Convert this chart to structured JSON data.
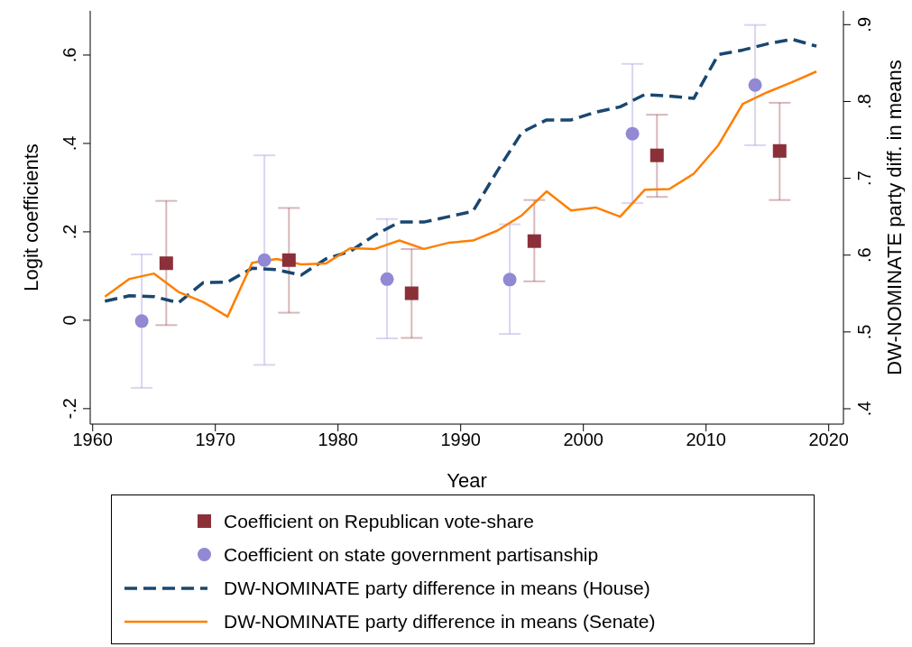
{
  "chart_data": {
    "type": "scatter",
    "xlabel": "Year",
    "ylabel": "Logit coefficients",
    "y2label": "DW-NOMINATE party diff. in means",
    "xlim": [
      1959.8,
      2021.2
    ],
    "xticks": [
      1960,
      1970,
      1980,
      1990,
      2000,
      2010,
      2020
    ],
    "ylim": [
      -0.235,
      0.7
    ],
    "yticks": [
      {
        "value": -0.2,
        "label": "-.2"
      },
      0,
      {
        "value": 0.2,
        "label": ".2"
      },
      {
        "value": 0.4,
        "label": ".4"
      },
      {
        "value": 0.6,
        "label": ".6"
      }
    ],
    "y2lim": [
      0.38,
      0.918
    ],
    "y2ticks": [
      {
        "value": 0.4,
        "label": ".4"
      },
      {
        "value": 0.5,
        "label": ".5"
      },
      {
        "value": 0.6,
        "label": ".6"
      },
      {
        "value": 0.7,
        "label": ".7"
      },
      {
        "value": 0.8,
        "label": ".8"
      },
      {
        "value": 0.9,
        "label": ".9"
      }
    ],
    "grid": false,
    "legend": "bottom",
    "series": [
      {
        "name": "Coefficient on Republican vote-share",
        "marker": "square",
        "color": "#8b3039",
        "x": [
          1966,
          1976,
          1986,
          1996,
          2006,
          2016
        ],
        "values": [
          0.129,
          0.136,
          0.061,
          0.179,
          0.373,
          0.383
        ],
        "errors": [
          [
            -0.011,
            0.27
          ],
          [
            0.017,
            0.254
          ],
          [
            -0.04,
            0.161
          ],
          [
            0.088,
            0.272
          ],
          [
            0.279,
            0.465
          ],
          [
            0.272,
            0.492
          ]
        ]
      },
      {
        "name": "Coefficient on state government partisanship",
        "marker": "circle",
        "color": "#9189d3",
        "x": [
          1964,
          1974,
          1984,
          1994,
          2004,
          2014
        ],
        "values": [
          -0.002,
          0.136,
          0.093,
          0.092,
          0.422,
          0.532
        ],
        "errors": [
          [
            -0.153,
            0.149
          ],
          [
            -0.101,
            0.373
          ],
          [
            -0.041,
            0.229
          ],
          [
            -0.031,
            0.217
          ],
          [
            0.265,
            0.58
          ],
          [
            0.396,
            0.668
          ]
        ]
      },
      {
        "name": "DW-NOMINATE party difference in means (House)",
        "type": "line",
        "axis": "y2",
        "line_style": "dashed",
        "color": "#1a476f",
        "x": [
          1961,
          1963,
          1965,
          1967,
          1969,
          1971,
          1973,
          1975,
          1977,
          1979,
          1981,
          1983,
          1985,
          1987,
          1989,
          1991,
          1993,
          1995,
          1997,
          1999,
          2001,
          2003,
          2005,
          2007,
          2009,
          2011,
          2013,
          2015,
          2017,
          2019
        ],
        "values": [
          0.54,
          0.547,
          0.546,
          0.538,
          0.564,
          0.565,
          0.583,
          0.581,
          0.574,
          0.595,
          0.605,
          0.626,
          0.643,
          0.643,
          0.65,
          0.657,
          0.71,
          0.76,
          0.776,
          0.776,
          0.786,
          0.793,
          0.809,
          0.807,
          0.804,
          0.861,
          0.867,
          0.875,
          0.881,
          0.872
        ]
      },
      {
        "name": "DW-NOMINATE party difference in means (Senate)",
        "type": "line",
        "axis": "y2",
        "line_style": "solid",
        "color": "#ff7f00",
        "x": [
          1961,
          1963,
          1965,
          1967,
          1969,
          1971,
          1973,
          1975,
          1977,
          1979,
          1981,
          1983,
          1985,
          1987,
          1989,
          1991,
          1993,
          1995,
          1997,
          1999,
          2001,
          2003,
          2005,
          2007,
          2009,
          2011,
          2013,
          2015,
          2017,
          2019
        ],
        "values": [
          0.546,
          0.569,
          0.576,
          0.552,
          0.539,
          0.52,
          0.59,
          0.595,
          0.588,
          0.589,
          0.609,
          0.608,
          0.619,
          0.608,
          0.616,
          0.619,
          0.632,
          0.652,
          0.683,
          0.658,
          0.662,
          0.65,
          0.685,
          0.686,
          0.706,
          0.743,
          0.797,
          0.812,
          0.825,
          0.839
        ]
      }
    ]
  }
}
